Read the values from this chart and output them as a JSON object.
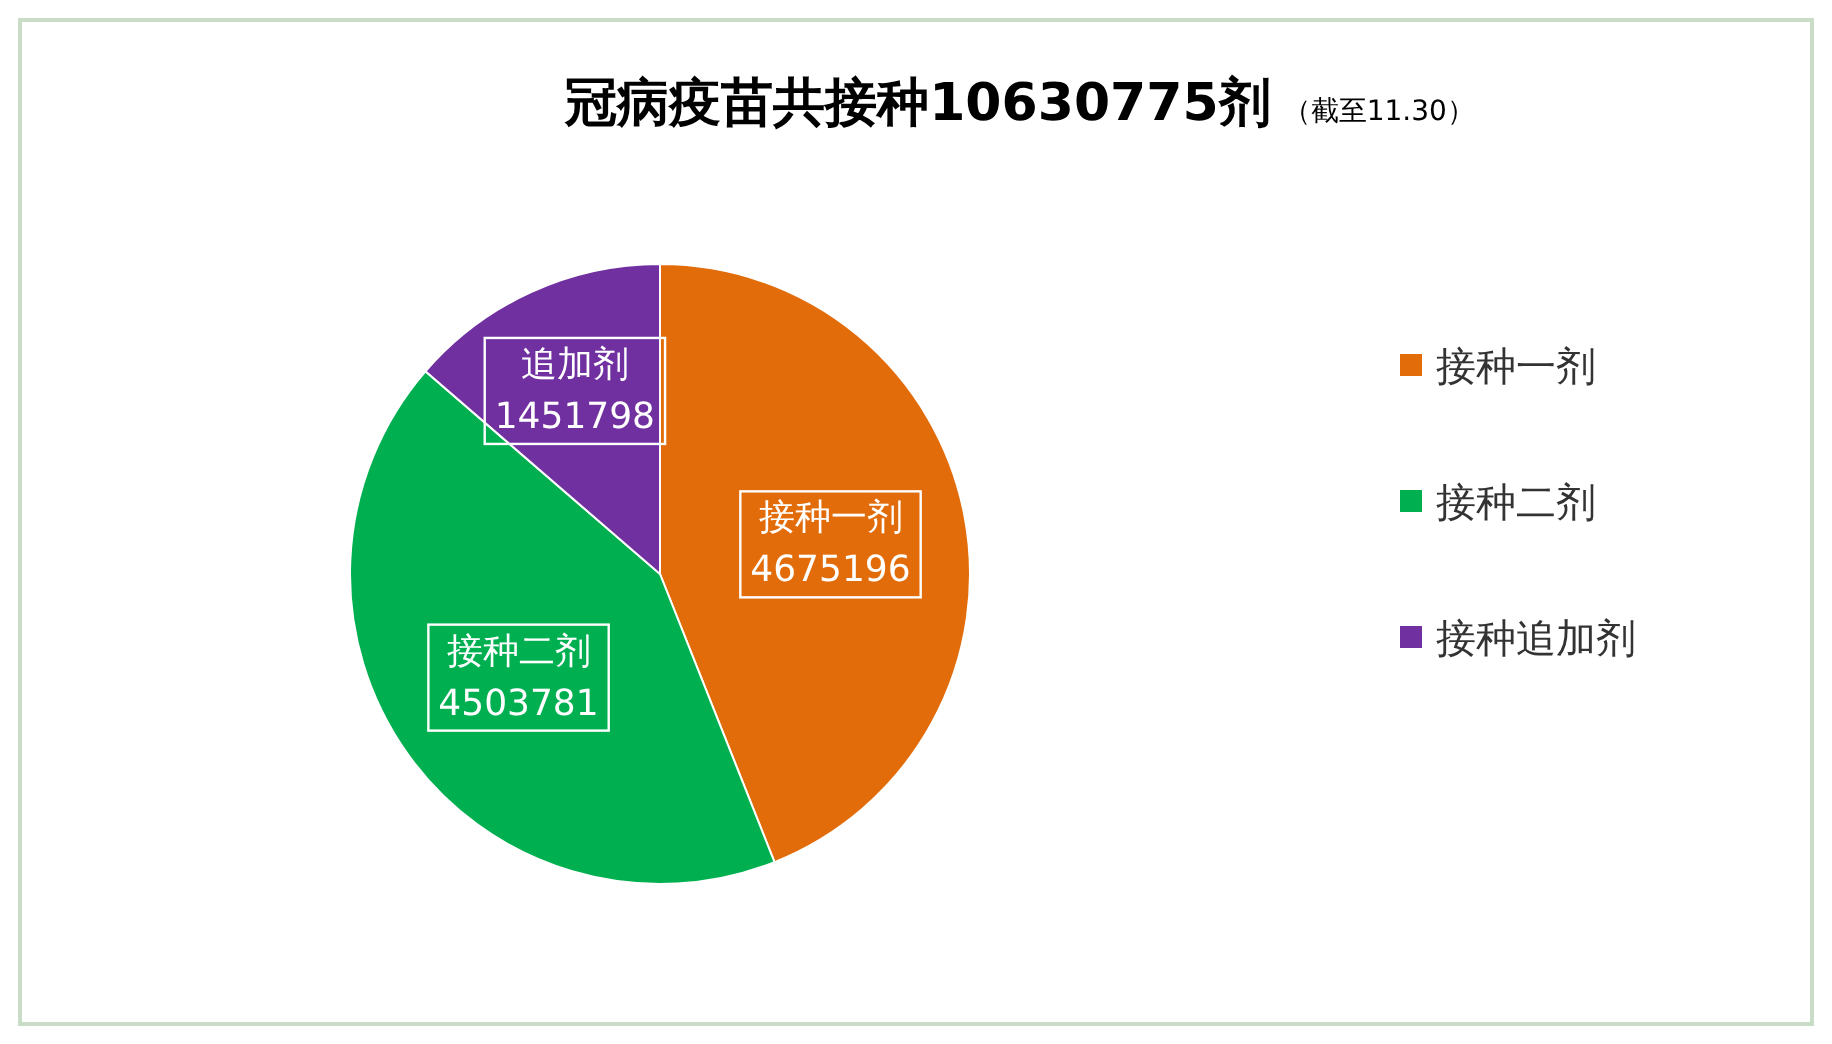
{
  "chart_data": {
    "type": "pie",
    "title": "冠病疫苗共接种10630775剂",
    "subtitle": "（截至11.30）",
    "categories": [
      "接种一剂",
      "接种二剂",
      "接种追加剂"
    ],
    "values": [
      4675196,
      4503781,
      1451798
    ],
    "colors": [
      "#e36c0a",
      "#00b050",
      "#7030a0"
    ],
    "value_labels": [
      "接种一剂\n4675196",
      "接种二剂\n4503781",
      "追加剂\n1451798"
    ],
    "legend": "right"
  }
}
